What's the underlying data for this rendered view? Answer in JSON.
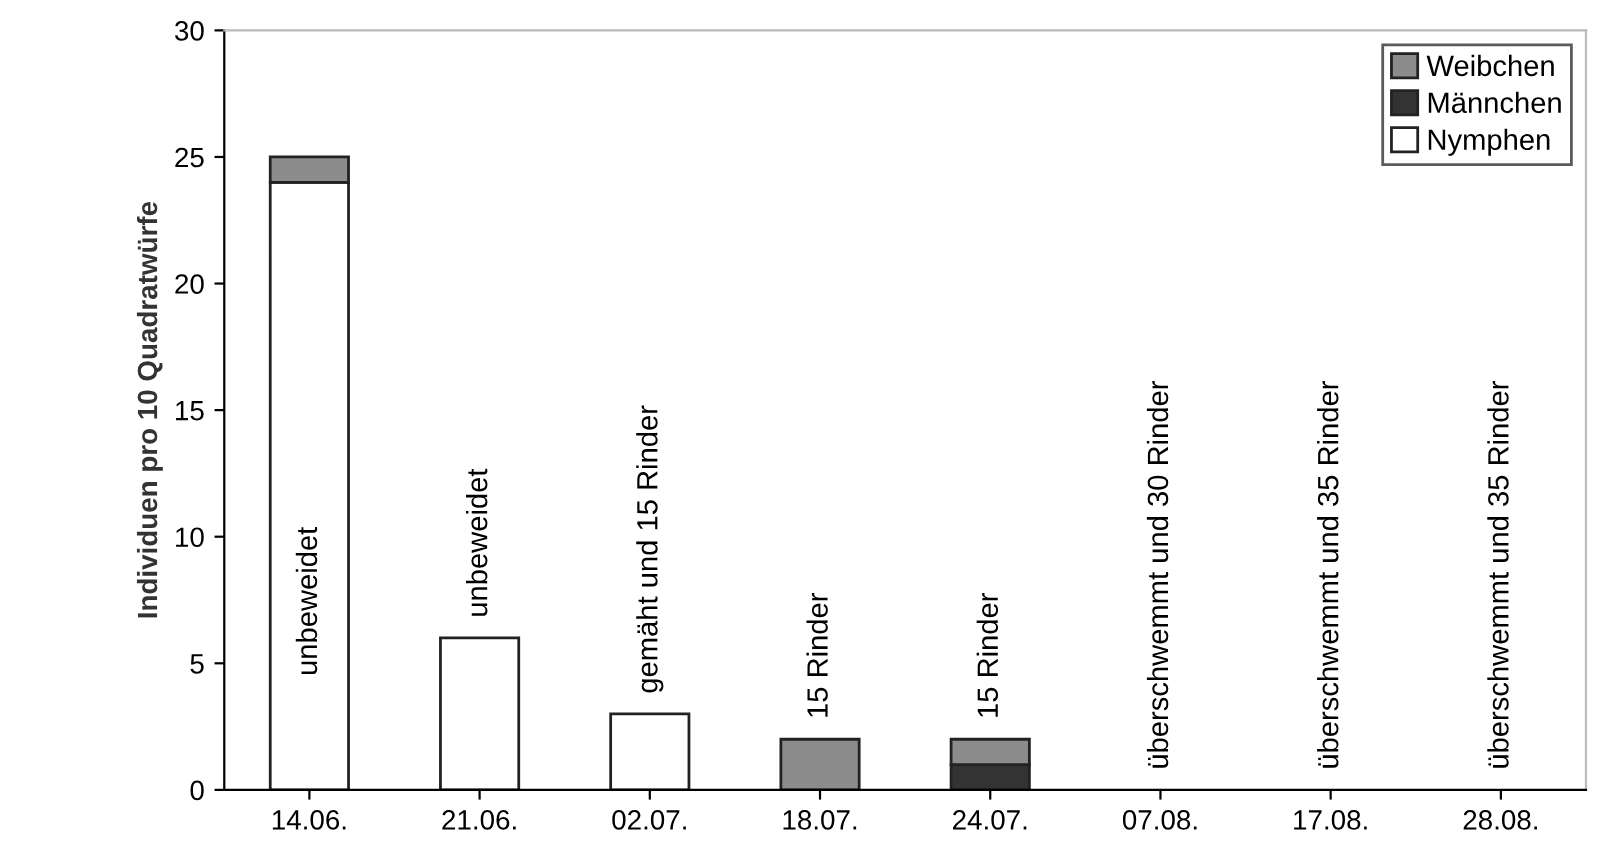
{
  "chart_data": {
    "type": "bar",
    "stacked": true,
    "ylabel": "Individuen pro 10 Quadratwürfe",
    "categories": [
      "14.06.",
      "21.06.",
      "02.07.",
      "18.07.",
      "24.07.",
      "07.08.",
      "17.08.",
      "28.08."
    ],
    "series": [
      {
        "name": "Nymphen",
        "color": "#ffffff",
        "values": [
          24,
          6,
          3,
          0,
          0,
          0,
          0,
          0
        ]
      },
      {
        "name": "Männchen",
        "color": "#333333",
        "values": [
          0,
          0,
          0,
          0,
          1,
          0,
          0,
          0
        ]
      },
      {
        "name": "Weibchen",
        "color": "#8c8c8c",
        "values": [
          1,
          0,
          0,
          2,
          1,
          0,
          0,
          0
        ]
      }
    ],
    "ylim": [
      0,
      30
    ],
    "yticks": [
      0,
      5,
      10,
      15,
      20,
      25,
      30
    ],
    "grid": false,
    "legend": "top right",
    "annotations": [
      "unbeweidet",
      "unbeweidet",
      "gemäht und 15 Rinder",
      "15 Rinder",
      "15 Rinder",
      "überschwemmt und 30 Rinder",
      "überschwemmt und 35 Rinder",
      "überschwemmt und 35 Rinder"
    ]
  }
}
